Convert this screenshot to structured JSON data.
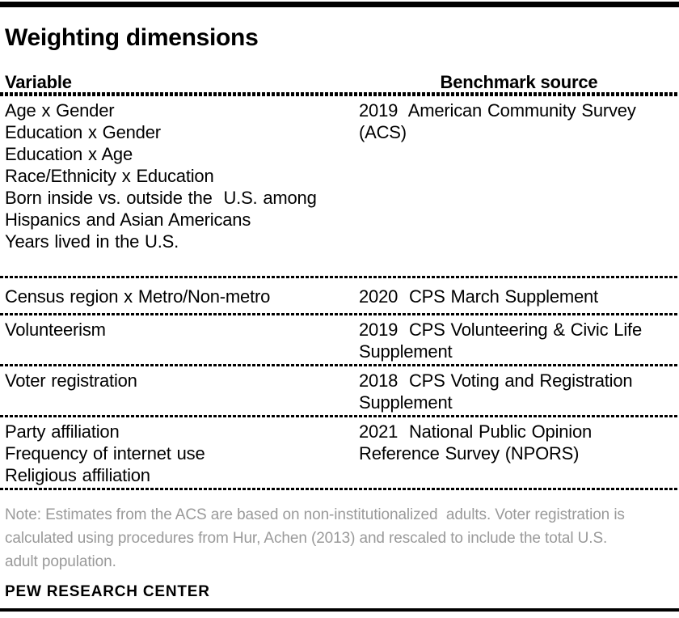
{
  "page": {
    "title": "Weighting dimensions"
  },
  "colors": {
    "rule": "#000000",
    "text": "#000000",
    "note": "#9a9a9a"
  },
  "table": {
    "headers": {
      "variable": "Variable",
      "source": "Benchmark source"
    },
    "rows": [
      {
        "variables": [
          "Age x Gender",
          "Education x Gender",
          "Education x Age",
          "Race/Ethnicity x Education",
          "Born inside vs. outside the  U.S. among",
          "Hispanics and Asian Americans",
          "Years lived in the U.S."
        ],
        "source": [
          "2019  American Community Survey",
          "(ACS)"
        ]
      },
      {
        "variables": [
          "Census region x Metro/Non-metro"
        ],
        "source": [
          "2020  CPS March Supplement"
        ]
      },
      {
        "variables": [
          "Volunteerism"
        ],
        "source": [
          "2019  CPS Volunteering & Civic Life",
          "Supplement"
        ]
      },
      {
        "variables": [
          "Voter registration"
        ],
        "source": [
          "2018  CPS Voting and Registration",
          "Supplement"
        ]
      },
      {
        "variables": [
          "Party affiliation",
          "Frequency of internet use",
          "Religious affiliation"
        ],
        "source": [
          "2021  National Public Opinion",
          "Reference Survey (NPORS)"
        ]
      }
    ]
  },
  "note": {
    "lines": [
      "Note: Estimates from the ACS are based on non-institutionalized  adults. Voter registration is",
      "calculated using procedures from Hur, Achen (2013) and rescaled to include the total U.S.",
      "adult population."
    ]
  },
  "footer": {
    "brand": "PEW RESEARCH CENTER"
  }
}
